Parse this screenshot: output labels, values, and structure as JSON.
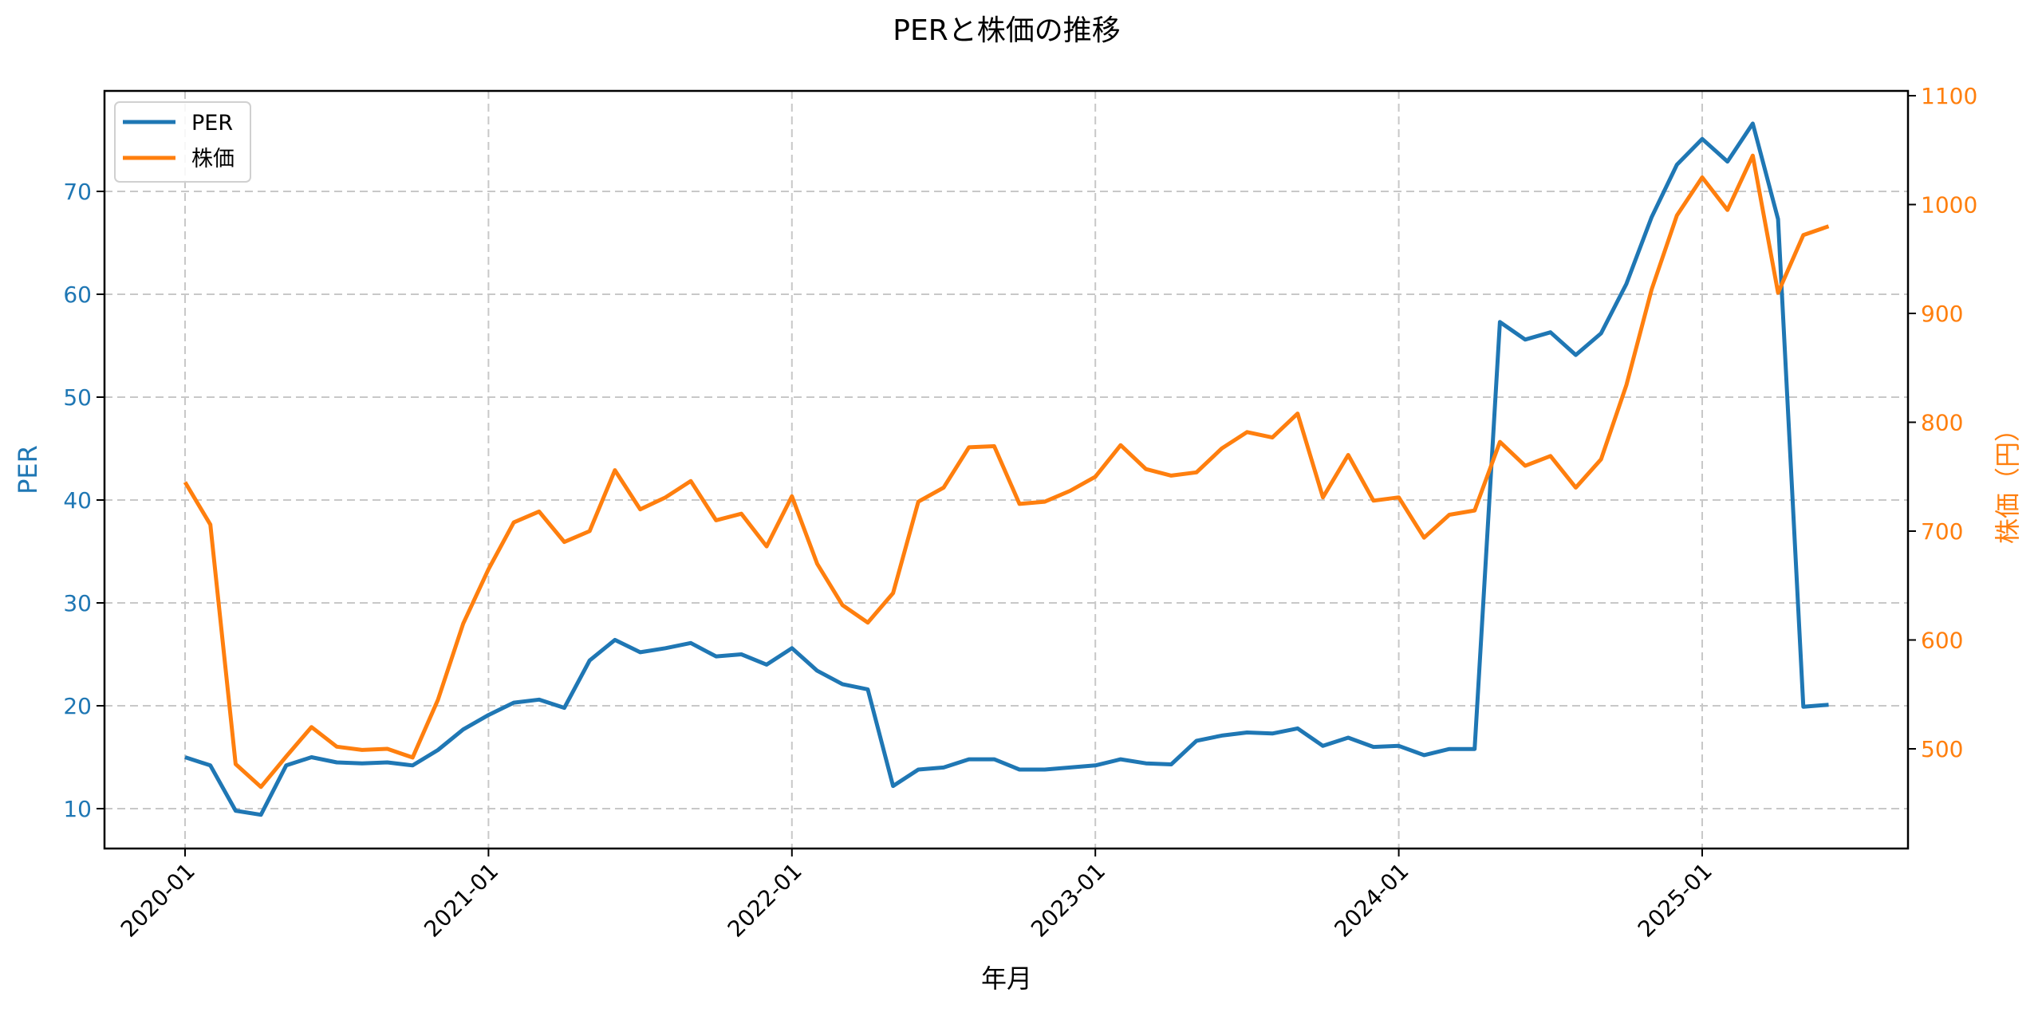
{
  "title": "PERと株価の推移",
  "colors": {
    "per": "#1f77b4",
    "price": "#ff7f0e",
    "grid": "#c8c8c8"
  },
  "legend": [
    {
      "label": "PER",
      "color": "#1f77b4"
    },
    {
      "label": "株価",
      "color": "#ff7f0e"
    }
  ],
  "axes": {
    "x_label": "年月",
    "left_label": "PER",
    "right_label": "株価（円）",
    "x_ticks": [
      "2020-01",
      "2021-01",
      "2022-01",
      "2023-01",
      "2024-01",
      "2025-01"
    ],
    "left_ticks": [
      "10",
      "20",
      "30",
      "40",
      "50",
      "60",
      "70"
    ],
    "right_ticks": [
      "500",
      "600",
      "700",
      "800",
      "900",
      "1000",
      "1100"
    ]
  },
  "chart_data": {
    "type": "line",
    "title": "PERと株価の推移",
    "xlabel": "年月",
    "ylabel": "PER",
    "ylabel_right": "株価（円）",
    "ylim": [
      6,
      80
    ],
    "ylim_right": [
      408,
      1105
    ],
    "grid": true,
    "legend_position": "upper left",
    "x": [
      "2020-01",
      "2020-02",
      "2020-03",
      "2020-04",
      "2020-05",
      "2020-06",
      "2020-07",
      "2020-08",
      "2020-09",
      "2020-10",
      "2020-11",
      "2020-12",
      "2021-01",
      "2021-02",
      "2021-03",
      "2021-04",
      "2021-05",
      "2021-06",
      "2021-07",
      "2021-08",
      "2021-09",
      "2021-10",
      "2021-11",
      "2021-12",
      "2022-01",
      "2022-02",
      "2022-03",
      "2022-04",
      "2022-05",
      "2022-06",
      "2022-07",
      "2022-08",
      "2022-09",
      "2022-10",
      "2022-11",
      "2022-12",
      "2023-01",
      "2023-02",
      "2023-03",
      "2023-04",
      "2023-05",
      "2023-06",
      "2023-07",
      "2023-08",
      "2023-09",
      "2023-10",
      "2023-11",
      "2023-12",
      "2024-01",
      "2024-02",
      "2024-03",
      "2024-04",
      "2024-05",
      "2024-06",
      "2024-07",
      "2024-08",
      "2024-09",
      "2024-10",
      "2024-11",
      "2024-12",
      "2025-01",
      "2025-02",
      "2025-03",
      "2025-04",
      "2025-05",
      "2025-06"
    ],
    "series": [
      {
        "name": "PER",
        "axis": "left",
        "color": "#1f77b4",
        "values": [
          15.0,
          14.2,
          9.8,
          9.4,
          14.2,
          15.0,
          14.5,
          14.4,
          14.5,
          14.2,
          15.7,
          17.7,
          19.1,
          20.3,
          20.6,
          19.8,
          24.4,
          26.4,
          25.2,
          25.6,
          26.1,
          24.8,
          25.0,
          24.0,
          25.6,
          23.4,
          22.1,
          21.6,
          12.2,
          13.8,
          14.0,
          14.8,
          14.8,
          13.8,
          13.8,
          14.0,
          14.2,
          14.8,
          14.4,
          14.3,
          16.6,
          17.1,
          17.4,
          17.3,
          17.8,
          16.1,
          16.9,
          16.0,
          16.1,
          15.2,
          15.8,
          15.8,
          57.3,
          55.6,
          56.3,
          54.1,
          56.2,
          61.0,
          67.5,
          72.6,
          75.1,
          72.9,
          76.6,
          67.3,
          19.9,
          20.1
        ]
      },
      {
        "name": "株価",
        "axis": "right",
        "color": "#ff7f0e",
        "values": [
          745,
          706,
          486,
          465,
          493,
          520,
          502,
          499,
          500,
          492,
          545,
          615,
          665,
          708,
          718,
          690,
          700,
          756,
          720,
          731,
          746,
          710,
          716,
          686,
          732,
          670,
          632,
          616,
          643,
          727,
          740,
          777,
          778,
          725,
          727,
          737,
          750,
          779,
          757,
          751,
          754,
          776,
          791,
          786,
          808,
          731,
          770,
          728,
          731,
          694,
          715,
          719,
          782,
          760,
          769,
          740,
          766,
          834,
          922,
          990,
          1025,
          995,
          1045,
          919,
          972,
          980
        ]
      }
    ]
  }
}
